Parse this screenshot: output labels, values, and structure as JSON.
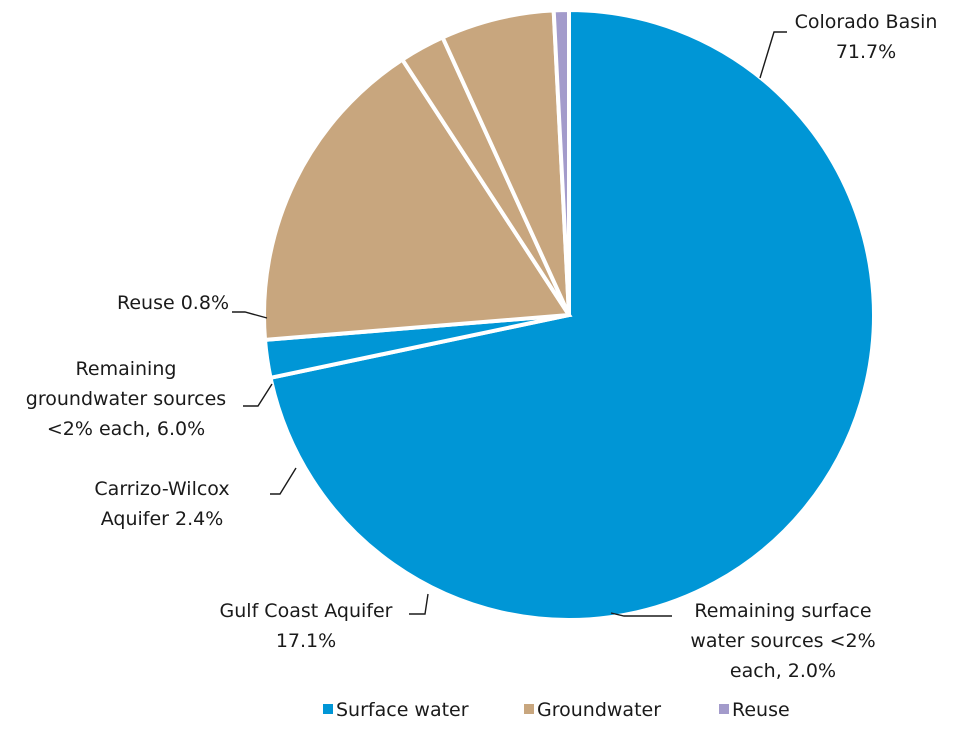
{
  "chart_data": {
    "type": "pie",
    "slices": [
      {
        "label_lines": [
          "Colorado Basin",
          "71.7%"
        ],
        "value": 71.7,
        "category": "Surface water"
      },
      {
        "label_lines": [
          "Remaining surface",
          "water sources <2%",
          "each, 2.0%"
        ],
        "value": 2.0,
        "category": "Surface water"
      },
      {
        "label_lines": [
          "Gulf Coast Aquifer",
          "17.1%"
        ],
        "value": 17.1,
        "category": "Groundwater"
      },
      {
        "label_lines": [
          "Carrizo-Wilcox",
          "Aquifer 2.4%"
        ],
        "value": 2.4,
        "category": "Groundwater"
      },
      {
        "label_lines": [
          "Remaining",
          "groundwater sources",
          "<2% each, 6.0%"
        ],
        "value": 6.0,
        "category": "Groundwater"
      },
      {
        "label_lines": [
          "Reuse 0.8%"
        ],
        "value": 0.8,
        "category": "Reuse"
      }
    ],
    "legend": [
      {
        "name": "Surface water",
        "color": "#0096d6"
      },
      {
        "name": "Groundwater",
        "color": "#c8a67e"
      },
      {
        "name": "Reuse",
        "color": "#a39bcb"
      }
    ],
    "legend_position": "bottom",
    "start_angle": "top",
    "direction": "clockwise"
  }
}
